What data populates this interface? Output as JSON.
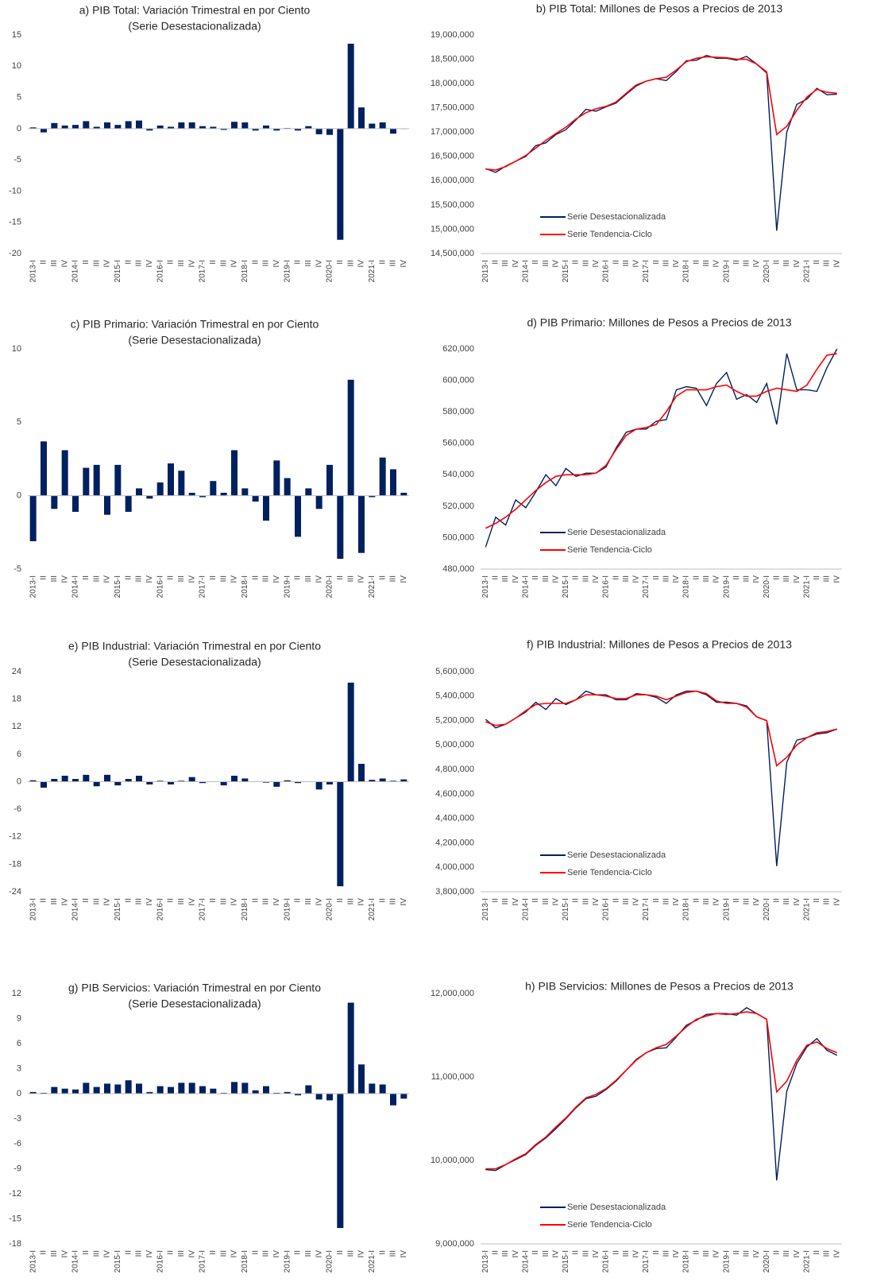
{
  "chart_data": [
    {
      "type": "bar",
      "title": "a) PIB Total: Variación Trimestral en por Ciento",
      "subtitle": "(Serie Desestacionalizada)",
      "color": "#002060",
      "categories": [
        "2013-I",
        "II",
        "III",
        "IV",
        "2014-I",
        "II",
        "III",
        "IV",
        "2015-I",
        "II",
        "III",
        "IV",
        "2016-I",
        "II",
        "III",
        "IV",
        "2017-I",
        "II",
        "III",
        "IV",
        "2018-I",
        "II",
        "III",
        "IV",
        "2019-I",
        "II",
        "III",
        "IV",
        "2020-I",
        "II",
        "III",
        "IV",
        "2021-I",
        "II",
        "III",
        "IV"
      ],
      "values": [
        0.2,
        -0.6,
        0.9,
        0.5,
        0.6,
        1.2,
        0.3,
        1.0,
        0.6,
        1.2,
        1.3,
        -0.3,
        0.5,
        0.3,
        1.0,
        1.0,
        0.4,
        0.3,
        -0.2,
        1.1,
        1.0,
        -0.3,
        0.5,
        -0.3,
        0.1,
        -0.3,
        0.4,
        -0.9,
        -1.0,
        -17.8,
        13.6,
        3.4,
        0.8,
        1.0,
        -0.8,
        0.0
      ],
      "ylim": [
        -20,
        15
      ],
      "yticks": [
        15,
        10,
        5,
        0,
        -5,
        -10,
        -15,
        -20
      ]
    },
    {
      "type": "line",
      "title": "b) PIB Total: Millones de Pesos a Precios de 2013",
      "legend": "lower left",
      "categories": [
        "2013-I",
        "II",
        "III",
        "IV",
        "2014-I",
        "II",
        "III",
        "IV",
        "2015-I",
        "II",
        "III",
        "IV",
        "2016-I",
        "II",
        "III",
        "IV",
        "2017-I",
        "II",
        "III",
        "IV",
        "2018-I",
        "II",
        "III",
        "IV",
        "2019-I",
        "II",
        "III",
        "IV",
        "2020-I",
        "II",
        "III",
        "IV",
        "2021-I",
        "II",
        "III",
        "IV"
      ],
      "series": [
        {
          "name": "Serie Desestacionalizada",
          "color": "#002060",
          "values": [
            16250000,
            16170000,
            16300000,
            16400000,
            16500000,
            16720000,
            16780000,
            16950000,
            17050000,
            17250000,
            17470000,
            17430000,
            17520000,
            17600000,
            17780000,
            17950000,
            18050000,
            18100000,
            18060000,
            18250000,
            18470000,
            18480000,
            18580000,
            18520000,
            18520000,
            18480000,
            18560000,
            18400000,
            18220000,
            14970000,
            17000000,
            17570000,
            17680000,
            17900000,
            17770000,
            17780000
          ]
        },
        {
          "name": "Serie Tendencia-Ciclo",
          "color": "#ff0000",
          "values": [
            16240000,
            16220000,
            16290000,
            16400000,
            16520000,
            16670000,
            16830000,
            16970000,
            17100000,
            17270000,
            17400000,
            17480000,
            17530000,
            17620000,
            17800000,
            17970000,
            18050000,
            18100000,
            18130000,
            18280000,
            18450000,
            18520000,
            18550000,
            18540000,
            18530000,
            18500000,
            18500000,
            18400000,
            18240000,
            16950000,
            17120000,
            17450000,
            17720000,
            17880000,
            17820000,
            17800000
          ]
        }
      ],
      "ylim": [
        14500000,
        19000000
      ],
      "yticks": [
        {
          "value": 19000000,
          "label": "19,000,000"
        },
        {
          "value": 18500000,
          "label": "18,500,000"
        },
        {
          "value": 18000000,
          "label": "18,000,000"
        },
        {
          "value": 17500000,
          "label": "17,500,000"
        },
        {
          "value": 17000000,
          "label": "17,000,000"
        },
        {
          "value": 16500000,
          "label": "16,500,000"
        },
        {
          "value": 16000000,
          "label": "16,000,000"
        },
        {
          "value": 15500000,
          "label": "15,500,000"
        },
        {
          "value": 15000000,
          "label": "15,000,000"
        },
        {
          "value": 14500000,
          "label": "14,500,000"
        }
      ]
    },
    {
      "type": "bar",
      "title": "c) PIB Primario: Variación Trimestral en por Ciento",
      "subtitle": "(Serie Desestacionalizada)",
      "color": "#002060",
      "categories": [
        "2013-I",
        "II",
        "III",
        "IV",
        "2014-I",
        "II",
        "III",
        "IV",
        "2015-I",
        "II",
        "III",
        "IV",
        "2016-I",
        "II",
        "III",
        "IV",
        "2017-I",
        "II",
        "III",
        "IV",
        "2018-I",
        "II",
        "III",
        "IV",
        "2019-I",
        "II",
        "III",
        "IV",
        "2020-I",
        "II",
        "III",
        "IV",
        "2021-I",
        "II",
        "III",
        "IV"
      ],
      "values": [
        -3.1,
        3.7,
        -0.9,
        3.1,
        -1.1,
        1.9,
        2.1,
        -1.3,
        2.1,
        -1.1,
        0.5,
        -0.2,
        0.9,
        2.2,
        1.7,
        0.2,
        -0.1,
        1.0,
        0.2,
        3.1,
        0.5,
        -0.4,
        -1.7,
        2.4,
        1.2,
        -2.8,
        0.5,
        -0.9,
        2.1,
        -4.3,
        7.9,
        -3.9,
        -0.1,
        2.6,
        1.8,
        0.2
      ],
      "ylim": [
        -5,
        10
      ],
      "yticks": [
        10,
        5,
        0,
        -5
      ]
    },
    {
      "type": "line",
      "title": "d) PIB Primario: Millones de Pesos a Precios de 2013",
      "legend": "lower left",
      "categories": [
        "2013-I",
        "II",
        "III",
        "IV",
        "2014-I",
        "II",
        "III",
        "IV",
        "2015-I",
        "II",
        "III",
        "IV",
        "2016-I",
        "II",
        "III",
        "IV",
        "2017-I",
        "II",
        "III",
        "IV",
        "2018-I",
        "II",
        "III",
        "IV",
        "2019-I",
        "II",
        "III",
        "IV",
        "2020-I",
        "II",
        "III",
        "IV",
        "2021-I",
        "II",
        "III",
        "IV"
      ],
      "series": [
        {
          "name": "Serie Desestacionalizada",
          "color": "#002060",
          "values": [
            494000,
            513000,
            508000,
            524000,
            519000,
            529000,
            540000,
            533000,
            544000,
            539000,
            541000,
            541000,
            545000,
            557000,
            567000,
            569000,
            569000,
            574000,
            575000,
            594000,
            596000,
            595000,
            584000,
            598000,
            605000,
            588000,
            591000,
            586000,
            598000,
            572000,
            617000,
            594000,
            594000,
            593000,
            608000,
            620000
          ]
        },
        {
          "name": "Serie Tendencia-Ciclo",
          "color": "#ff0000",
          "values": [
            506000,
            509000,
            513000,
            518000,
            524000,
            530000,
            535000,
            539000,
            540000,
            540000,
            540000,
            541000,
            546000,
            556000,
            565000,
            569000,
            570000,
            572000,
            580000,
            590000,
            594000,
            594000,
            594000,
            596000,
            597000,
            593000,
            590000,
            590000,
            593000,
            595000,
            594000,
            593000,
            597000,
            607000,
            616000,
            617000
          ]
        }
      ],
      "ylim": [
        480000,
        620000
      ],
      "yticks": [
        {
          "value": 620000,
          "label": "620,000"
        },
        {
          "value": 600000,
          "label": "600,000"
        },
        {
          "value": 580000,
          "label": "580,000"
        },
        {
          "value": 560000,
          "label": "560,000"
        },
        {
          "value": 540000,
          "label": "540,000"
        },
        {
          "value": 520000,
          "label": "520,000"
        },
        {
          "value": 500000,
          "label": "500,000"
        },
        {
          "value": 480000,
          "label": "480,000"
        }
      ]
    },
    {
      "type": "bar",
      "title": "e) PIB Industrial: Variación Trimestral en por Ciento",
      "subtitle": "(Serie Desestacionalizada)",
      "color": "#002060",
      "categories": [
        "2013-I",
        "II",
        "III",
        "IV",
        "2014-I",
        "II",
        "III",
        "IV",
        "2015-I",
        "II",
        "III",
        "IV",
        "2016-I",
        "II",
        "III",
        "IV",
        "2017-I",
        "II",
        "III",
        "IV",
        "2018-I",
        "II",
        "III",
        "IV",
        "2019-I",
        "II",
        "III",
        "IV",
        "2020-I",
        "II",
        "III",
        "IV",
        "2021-I",
        "II",
        "III",
        "IV"
      ],
      "values": [
        0.3,
        -1.3,
        0.6,
        1.3,
        0.6,
        1.5,
        -1.0,
        1.5,
        -0.8,
        0.6,
        1.3,
        -0.6,
        0.2,
        -0.6,
        0.2,
        1.0,
        -0.3,
        0.0,
        -0.8,
        1.3,
        0.7,
        0.0,
        -0.2,
        -1.1,
        0.3,
        -0.3,
        0.0,
        -1.7,
        -0.6,
        -22.8,
        21.6,
        3.9,
        0.4,
        0.7,
        0.2,
        0.5
      ],
      "ylim": [
        -24,
        24
      ],
      "yticks": [
        24,
        18,
        12,
        6,
        0,
        -6,
        -12,
        -18,
        -24
      ]
    },
    {
      "type": "line",
      "title": "f) PIB Industrial: Millones de Pesos a Precios de 2013",
      "legend": "lower left",
      "categories": [
        "2013-I",
        "II",
        "III",
        "IV",
        "2014-I",
        "II",
        "III",
        "IV",
        "2015-I",
        "II",
        "III",
        "IV",
        "2016-I",
        "II",
        "III",
        "IV",
        "2017-I",
        "II",
        "III",
        "IV",
        "2018-I",
        "II",
        "III",
        "IV",
        "2019-I",
        "II",
        "III",
        "IV",
        "2020-I",
        "II",
        "III",
        "IV",
        "2021-I",
        "II",
        "III",
        "IV"
      ],
      "series": [
        {
          "name": "Serie Desestacionalizada",
          "color": "#002060",
          "values": [
            5210000,
            5140000,
            5170000,
            5220000,
            5270000,
            5350000,
            5290000,
            5380000,
            5330000,
            5370000,
            5440000,
            5410000,
            5410000,
            5370000,
            5370000,
            5420000,
            5410000,
            5390000,
            5340000,
            5410000,
            5440000,
            5440000,
            5410000,
            5350000,
            5350000,
            5340000,
            5320000,
            5230000,
            5200000,
            4010000,
            4860000,
            5040000,
            5060000,
            5090000,
            5100000,
            5130000
          ]
        },
        {
          "name": "Serie Tendencia-Ciclo",
          "color": "#ff0000",
          "values": [
            5190000,
            5160000,
            5170000,
            5220000,
            5280000,
            5330000,
            5340000,
            5340000,
            5340000,
            5370000,
            5410000,
            5410000,
            5400000,
            5380000,
            5380000,
            5410000,
            5410000,
            5400000,
            5370000,
            5400000,
            5430000,
            5440000,
            5420000,
            5360000,
            5340000,
            5340000,
            5310000,
            5230000,
            5200000,
            4830000,
            4900000,
            5000000,
            5060000,
            5100000,
            5110000,
            5130000
          ]
        }
      ],
      "ylim": [
        3800000,
        5600000
      ],
      "yticks": [
        {
          "value": 5600000,
          "label": "5,600,000"
        },
        {
          "value": 5400000,
          "label": "5,400,000"
        },
        {
          "value": 5200000,
          "label": "5,200,000"
        },
        {
          "value": 5000000,
          "label": "5,000,000"
        },
        {
          "value": 4800000,
          "label": "4,800,000"
        },
        {
          "value": 4600000,
          "label": "4,600,000"
        },
        {
          "value": 4400000,
          "label": "4,400,000"
        },
        {
          "value": 4200000,
          "label": "4,200,000"
        },
        {
          "value": 4000000,
          "label": "4,000,000"
        },
        {
          "value": 3800000,
          "label": "3,800,000"
        }
      ]
    },
    {
      "type": "bar",
      "title": "g) PIB Servicios: Variación Trimestral en por Ciento",
      "subtitle": "(Serie Desestacionalizada)",
      "color": "#002060",
      "categories": [
        "2013-I",
        "II",
        "III",
        "IV",
        "2014-I",
        "II",
        "III",
        "IV",
        "2015-I",
        "II",
        "III",
        "IV",
        "2016-I",
        "II",
        "III",
        "IV",
        "2017-I",
        "II",
        "III",
        "IV",
        "2018-I",
        "II",
        "III",
        "IV",
        "2019-I",
        "II",
        "III",
        "IV",
        "2020-I",
        "II",
        "III",
        "IV",
        "2021-I",
        "II",
        "III",
        "IV"
      ],
      "values": [
        0.2,
        0.1,
        0.8,
        0.6,
        0.5,
        1.3,
        0.8,
        1.2,
        1.1,
        1.6,
        1.2,
        0.2,
        0.9,
        0.8,
        1.3,
        1.3,
        0.9,
        0.6,
        0.1,
        1.4,
        1.3,
        0.4,
        0.9,
        0.1,
        0.2,
        -0.2,
        1.0,
        -0.7,
        -0.8,
        -16.1,
        10.9,
        3.5,
        1.2,
        1.1,
        -1.4,
        -0.6
      ],
      "ylim": [
        -18,
        12
      ],
      "yticks": [
        12,
        9,
        6,
        3,
        0,
        -3,
        -6,
        -9,
        -12,
        -15,
        -18
      ]
    },
    {
      "type": "line",
      "title": "h) PIB Servicios: Millones de Pesos a Precios de 2013",
      "legend": "lower left",
      "categories": [
        "2013-I",
        "II",
        "III",
        "IV",
        "2014-I",
        "II",
        "III",
        "IV",
        "2015-I",
        "II",
        "III",
        "IV",
        "2016-I",
        "II",
        "III",
        "IV",
        "2017-I",
        "II",
        "III",
        "IV",
        "2018-I",
        "II",
        "III",
        "IV",
        "2019-I",
        "II",
        "III",
        "IV",
        "2020-I",
        "II",
        "III",
        "IV",
        "2021-I",
        "II",
        "III",
        "IV"
      ],
      "series": [
        {
          "name": "Serie Desestacionalizada",
          "color": "#002060",
          "values": [
            9890000,
            9880000,
            9950000,
            10010000,
            10070000,
            10180000,
            10270000,
            10380000,
            10500000,
            10630000,
            10740000,
            10770000,
            10850000,
            10950000,
            11080000,
            11210000,
            11290000,
            11340000,
            11350000,
            11480000,
            11620000,
            11680000,
            11750000,
            11760000,
            11760000,
            11740000,
            11830000,
            11760000,
            11690000,
            9760000,
            10830000,
            11160000,
            11360000,
            11460000,
            11320000,
            11260000
          ]
        },
        {
          "name": "Serie Tendencia-Ciclo",
          "color": "#ff0000",
          "values": [
            9900000,
            9900000,
            9950000,
            10020000,
            10080000,
            10190000,
            10280000,
            10400000,
            10510000,
            10640000,
            10750000,
            10790000,
            10860000,
            10960000,
            11080000,
            11200000,
            11290000,
            11350000,
            11390000,
            11490000,
            11600000,
            11690000,
            11730000,
            11760000,
            11750000,
            11760000,
            11780000,
            11760000,
            11690000,
            10820000,
            10950000,
            11200000,
            11380000,
            11420000,
            11340000,
            11290000
          ]
        }
      ],
      "ylim": [
        9000000,
        12000000
      ],
      "yticks": [
        {
          "value": 12000000,
          "label": "12,000,000"
        },
        {
          "value": 11000000,
          "label": "11,000,000"
        },
        {
          "value": 10000000,
          "label": "10,000,000"
        },
        {
          "value": 9000000,
          "label": "9,000,000"
        }
      ]
    }
  ]
}
